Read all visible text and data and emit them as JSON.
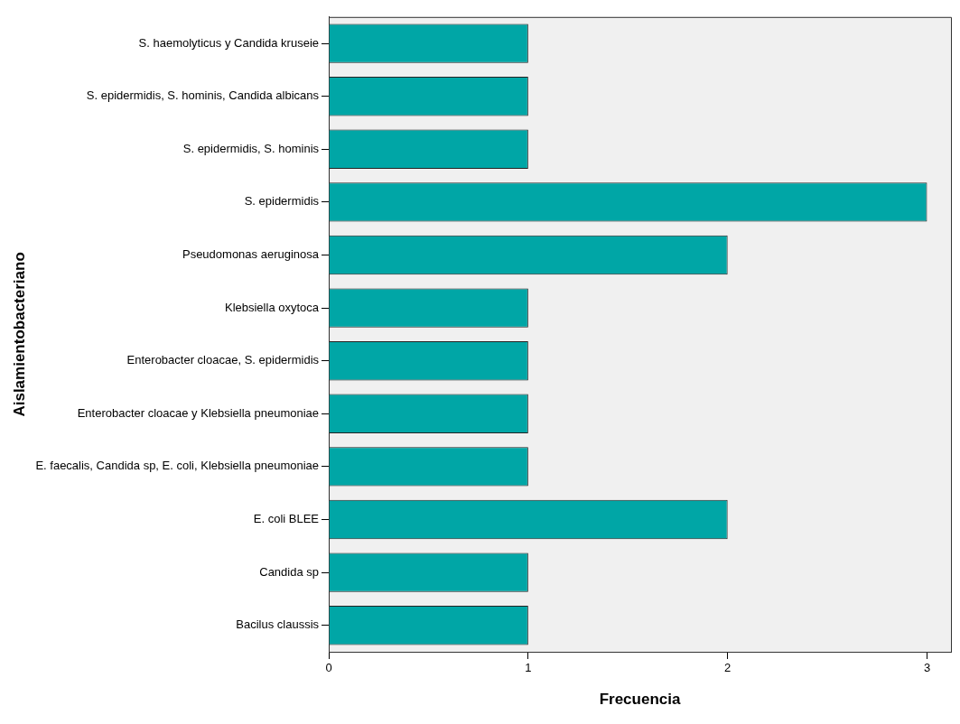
{
  "chart_data": {
    "type": "bar",
    "orientation": "horizontal",
    "xlabel": "Frecuencia",
    "ylabel": "Aislamientobacteriano",
    "categories": [
      "S. haemolyticus y Candida kruseie",
      "S. epidermidis, S. hominis, Candida albicans",
      "S. epidermidis, S. hominis",
      "S. epidermidis",
      "Pseudomonas aeruginosa",
      "Klebsiella oxytoca",
      "Enterobacter cloacae, S. epidermidis",
      "Enterobacter cloacae y Klebsiella pneumoniae",
      "E. faecalis, Candida sp, E. coli, Klebsiella pneumoniae",
      "E. coli BLEE",
      "Candida sp",
      "Bacilus claussis"
    ],
    "values": [
      1,
      1,
      1,
      3,
      2,
      1,
      1,
      1,
      1,
      2,
      1,
      1
    ],
    "color": "#00a6a6",
    "xlim": [
      0,
      3.12
    ],
    "xticks": [
      0,
      1,
      2,
      3
    ],
    "grid": false,
    "legend": false
  }
}
